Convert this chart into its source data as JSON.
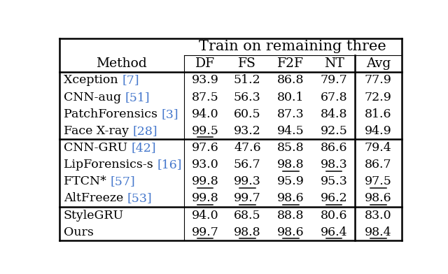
{
  "title": "Train on remaining three",
  "col_headers": [
    "Method",
    "DF",
    "FS",
    "F2F",
    "NT",
    "Avg"
  ],
  "rows": [
    {
      "method": "Xception ",
      "ref": "[7]",
      "values": [
        "93.9",
        "51.2",
        "86.8",
        "79.7",
        "77.9"
      ],
      "underline": []
    },
    {
      "method": "CNN-aug ",
      "ref": "[51]",
      "values": [
        "87.5",
        "56.3",
        "80.1",
        "67.8",
        "72.9"
      ],
      "underline": []
    },
    {
      "method": "PatchForensics ",
      "ref": "[3]",
      "values": [
        "94.0",
        "60.5",
        "87.3",
        "84.8",
        "81.6"
      ],
      "underline": []
    },
    {
      "method": "Face X-ray ",
      "ref": "[28]",
      "values": [
        "99.5",
        "93.2",
        "94.5",
        "92.5",
        "94.9"
      ],
      "underline": [
        0
      ]
    },
    {
      "method": "CNN-GRU ",
      "ref": "[42]",
      "values": [
        "97.6",
        "47.6",
        "85.8",
        "86.6",
        "79.4"
      ],
      "underline": []
    },
    {
      "method": "LipForensics-s ",
      "ref": "[16]",
      "values": [
        "93.0",
        "56.7",
        "98.8",
        "98.3",
        "86.7"
      ],
      "underline": [
        2,
        3
      ]
    },
    {
      "method": "FTCN* ",
      "ref": "[57]",
      "values": [
        "99.8",
        "99.3",
        "95.9",
        "95.3",
        "97.5"
      ],
      "underline": [
        0,
        1,
        4
      ]
    },
    {
      "method": "AltFreeze ",
      "ref": "[53]",
      "values": [
        "99.8",
        "99.7",
        "98.6",
        "96.2",
        "98.6"
      ],
      "underline": [
        0,
        1,
        2,
        3,
        4
      ]
    },
    {
      "method": "StyleGRU",
      "ref": "",
      "values": [
        "94.0",
        "68.5",
        "88.8",
        "80.6",
        "83.0"
      ],
      "underline": []
    },
    {
      "method": "Ours",
      "ref": "",
      "values": [
        "99.7",
        "98.8",
        "98.6",
        "96.4",
        "98.4"
      ],
      "underline": [
        0,
        1,
        2,
        3,
        4
      ]
    }
  ],
  "group_dividers": [
    4,
    8
  ],
  "ref_color": "#4477CC",
  "text_color": "#000000",
  "bg_color": "#ffffff",
  "fontsize": 12.5,
  "header_fontsize": 13.5,
  "title_fontsize": 15
}
